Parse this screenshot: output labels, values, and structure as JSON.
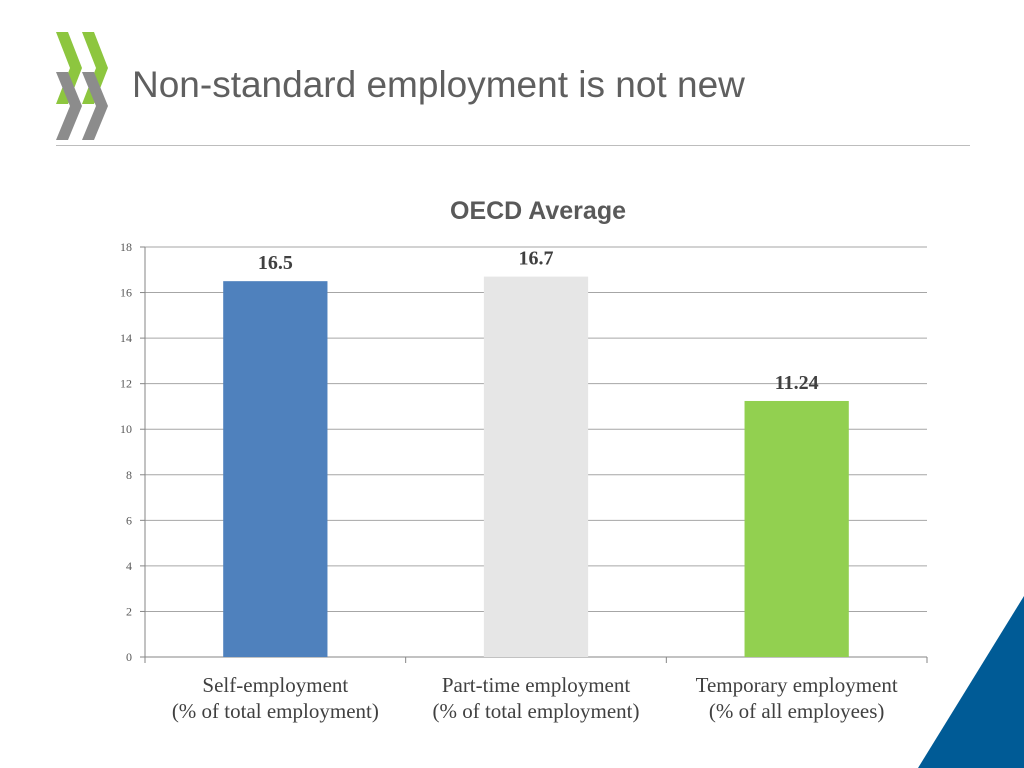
{
  "slide": {
    "title": "Non-standard employment is not new",
    "colors": {
      "title_text": "#5f5f5f",
      "logo_green": "#8dc63f",
      "logo_gray": "#8c8c8c",
      "corner_blue": "#005b96"
    }
  },
  "chart_data": {
    "type": "bar",
    "title": "OECD Average",
    "xlabel": "",
    "ylabel": "",
    "ylim": [
      0,
      18
    ],
    "yticks": [
      0,
      2,
      4,
      6,
      8,
      10,
      12,
      14,
      16,
      18
    ],
    "grid": true,
    "categories": [
      [
        "Self-employment",
        "(% of total employment)"
      ],
      [
        "Part-time employment",
        "(% of total employment)"
      ],
      [
        "Temporary employment",
        "(% of all employees)"
      ]
    ],
    "values": [
      16.5,
      16.7,
      11.24
    ],
    "value_labels": [
      "16.5",
      "16.7",
      "11.24"
    ],
    "bar_colors": [
      "#4f81bd",
      "#e6e6e6",
      "#92d050"
    ]
  }
}
